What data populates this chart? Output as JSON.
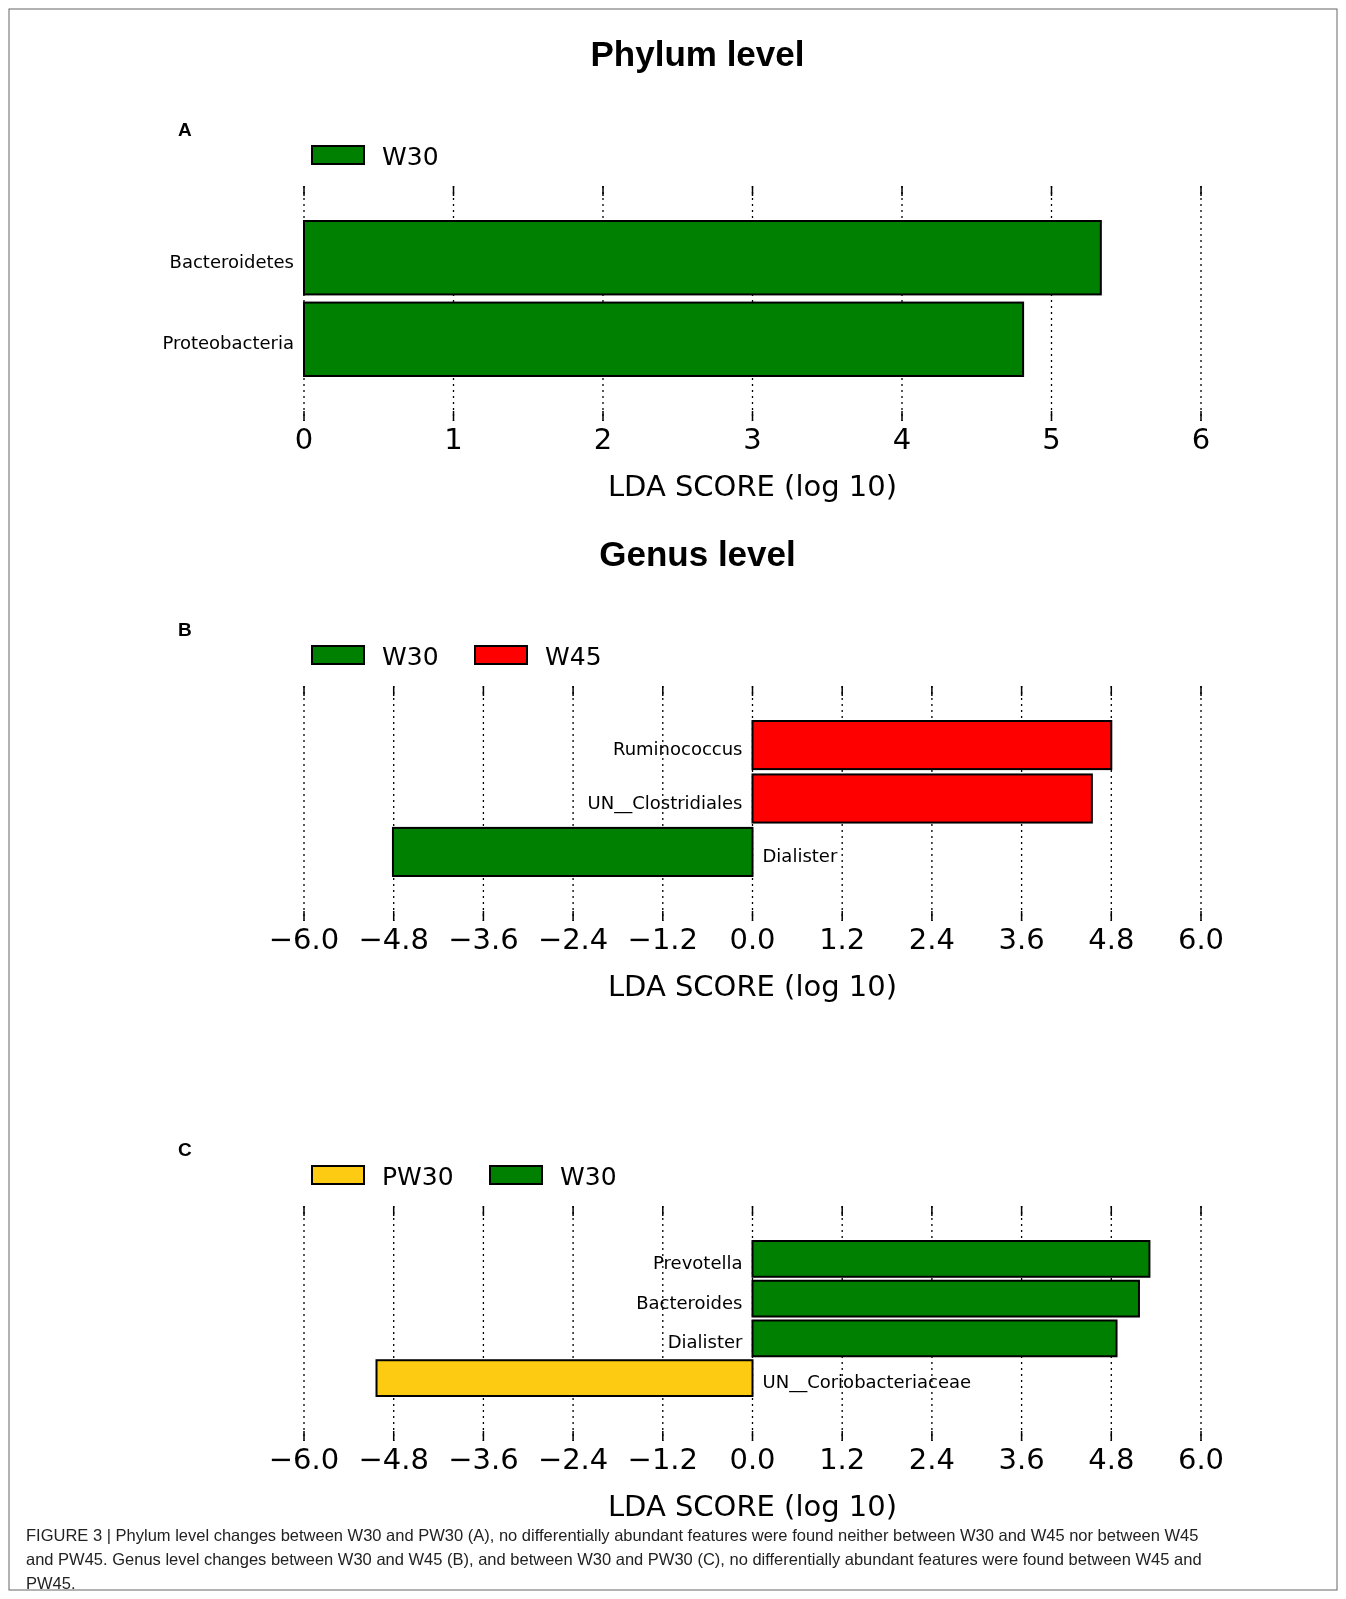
{
  "chart_data": [
    {
      "type": "bar",
      "orientation": "horizontal",
      "stacked": true,
      "title": "Phylum level",
      "annotations": [
        "A"
      ],
      "xlabel": "LDA SCORE (log 10)",
      "categories": [
        "Bacteroidetes",
        "Proteobacteria"
      ],
      "series": [
        {
          "name": "W30",
          "color": "#008000",
          "values": [
            5.33,
            4.81
          ]
        }
      ],
      "xlim": [
        0,
        6
      ],
      "xticks": [
        0,
        1,
        2,
        3,
        4,
        5,
        6
      ],
      "grid": "x",
      "legend": "top left"
    },
    {
      "type": "bar",
      "orientation": "horizontal",
      "stacked": true,
      "title": "Genus level",
      "annotations": [
        "B"
      ],
      "xlabel": "LDA SCORE (log 10)",
      "categories": [
        "Ruminococcus",
        "UN__Clostridiales",
        "Dialister"
      ],
      "series": [
        {
          "name": "W30",
          "color": "#008000",
          "values": [
            null,
            null,
            -4.81
          ]
        },
        {
          "name": "W45",
          "color": "#ff0000",
          "values": [
            4.8,
            4.54,
            null
          ]
        }
      ],
      "xlim": [
        -6,
        6
      ],
      "xticks": [
        {
          "value": -6,
          "label": "−6.0"
        },
        {
          "value": -4.8,
          "label": "−4.8"
        },
        {
          "value": -3.6,
          "label": "−3.6"
        },
        {
          "value": -2.4,
          "label": "−2.4"
        },
        {
          "value": -1.2,
          "label": "−1.2"
        },
        {
          "value": 0,
          "label": "0.0"
        },
        {
          "value": 1.2,
          "label": "1.2"
        },
        {
          "value": 2.4,
          "label": "2.4"
        },
        {
          "value": 3.6,
          "label": "3.6"
        },
        {
          "value": 4.8,
          "label": "4.8"
        },
        {
          "value": 6,
          "label": "6.0"
        }
      ],
      "grid": "x",
      "legend": "top left"
    },
    {
      "type": "bar",
      "orientation": "horizontal",
      "stacked": true,
      "annotations": [
        "C",
        "FIGURE 3 | Phylum level changes between W30 and PW30 (A), no differentially abundant features were found neither between W30 and W45 nor between W45 and PW45. Genus level changes between W30 and W45 (B), and between W30 and PW30 (C), no differentially abundant features were found between W45 and PW45."
      ],
      "xlabel": "LDA SCORE (log 10)",
      "categories": [
        "Prevotella",
        "Bacteroides",
        "Dialister",
        "UN__Coriobacteriaceae"
      ],
      "series": [
        {
          "name": "PW30",
          "color": "#fccb12",
          "values": [
            null,
            null,
            null,
            -5.03
          ]
        },
        {
          "name": "W30",
          "color": "#008000",
          "values": [
            5.31,
            5.17,
            4.87,
            null
          ]
        }
      ],
      "xlim": [
        -6,
        6
      ],
      "xticks": [
        {
          "value": -6,
          "label": "−6.0"
        },
        {
          "value": -4.8,
          "label": "−4.8"
        },
        {
          "value": -3.6,
          "label": "−3.6"
        },
        {
          "value": -2.4,
          "label": "−2.4"
        },
        {
          "value": -1.2,
          "label": "−1.2"
        },
        {
          "value": 0,
          "label": "0.0"
        },
        {
          "value": 1.2,
          "label": "1.2"
        },
        {
          "value": 2.4,
          "label": "2.4"
        },
        {
          "value": 3.6,
          "label": "3.6"
        },
        {
          "value": 4.8,
          "label": "4.8"
        },
        {
          "value": 6,
          "label": "6.0"
        }
      ],
      "grid": "x",
      "legend": "top left"
    }
  ]
}
